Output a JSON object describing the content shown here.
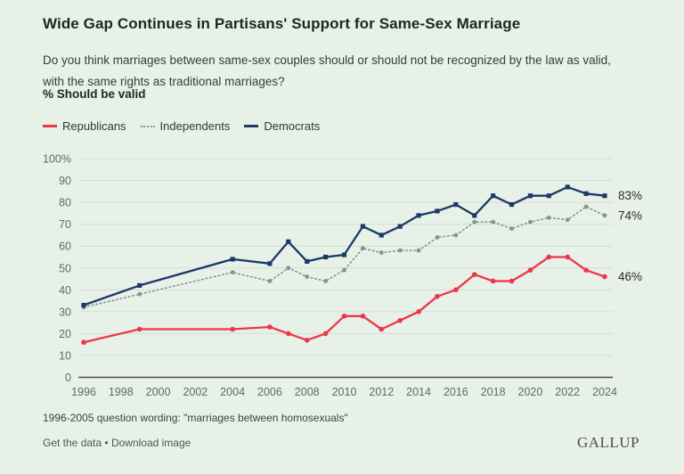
{
  "page": {
    "background": "#e7f1e8"
  },
  "header": {
    "title": "Wide Gap Continues in Partisans' Support for Same-Sex Marriage",
    "subtitle_line1": "Do you think marriages between same-sex couples should or should not be recognized by the law as valid,",
    "subtitle_line2": "with the same rights as traditional marriages?",
    "metric_label": "% Should be valid"
  },
  "legend": {
    "items": [
      {
        "label": "Republicans",
        "color": "#ee3648",
        "style": "solid"
      },
      {
        "label": "Independents",
        "color": "#7f968e",
        "style": "dotted"
      },
      {
        "label": "Democrats",
        "color": "#1c3a68",
        "style": "solid"
      }
    ]
  },
  "chart_data": {
    "type": "line",
    "title": "Wide Gap Continues in Partisans' Support for Same-Sex Marriage",
    "ylabel": "% Should be valid",
    "xlabel": "",
    "grid": true,
    "legend_position": "top-left",
    "ylim": [
      0,
      100
    ],
    "yticks": [
      0,
      10,
      20,
      30,
      40,
      50,
      60,
      70,
      80,
      90,
      100
    ],
    "ytick_top_label": "100%",
    "xticks": [
      1996,
      1998,
      2000,
      2002,
      2004,
      2006,
      2008,
      2010,
      2012,
      2014,
      2016,
      2018,
      2020,
      2022,
      2024
    ],
    "x": [
      1996,
      1999,
      2004,
      2006,
      2007,
      2008,
      2009,
      2010,
      2011,
      2012,
      2013,
      2014,
      2015,
      2016,
      2017,
      2018,
      2019,
      2020,
      2021,
      2022,
      2023,
      2024
    ],
    "series": [
      {
        "name": "Independents",
        "color": "#7f968e",
        "style": "dotted",
        "marker": "circle",
        "end_label": "74%",
        "values": [
          32,
          38,
          48,
          44,
          50,
          46,
          44,
          49,
          59,
          57,
          58,
          58,
          64,
          65,
          71,
          71,
          68,
          71,
          73,
          72,
          78,
          74
        ]
      },
      {
        "name": "Republicans",
        "color": "#ee3648",
        "style": "solid",
        "marker": "circle",
        "end_label": "46%",
        "values": [
          16,
          22,
          22,
          23,
          20,
          17,
          20,
          28,
          28,
          22,
          26,
          30,
          37,
          40,
          47,
          44,
          44,
          49,
          55,
          55,
          49,
          46
        ]
      },
      {
        "name": "Democrats",
        "color": "#1c3a68",
        "style": "solid",
        "marker": "square",
        "end_label": "83%",
        "values": [
          33,
          42,
          54,
          52,
          62,
          53,
          55,
          56,
          69,
          65,
          69,
          74,
          76,
          79,
          74,
          83,
          79,
          83,
          83,
          87,
          84,
          83
        ]
      }
    ],
    "colors": {
      "grid": "#d4ded5",
      "axis": "#4d4d4d",
      "tick_text": "#5f6a62",
      "end_label_text": "#2c2c2c"
    }
  },
  "footnote": "1996-2005 question wording: \"marriages between homosexuals\"",
  "footer": {
    "get_data_label": "Get the data",
    "separator": "•",
    "download_label": "Download image",
    "brand": "GALLUP"
  }
}
